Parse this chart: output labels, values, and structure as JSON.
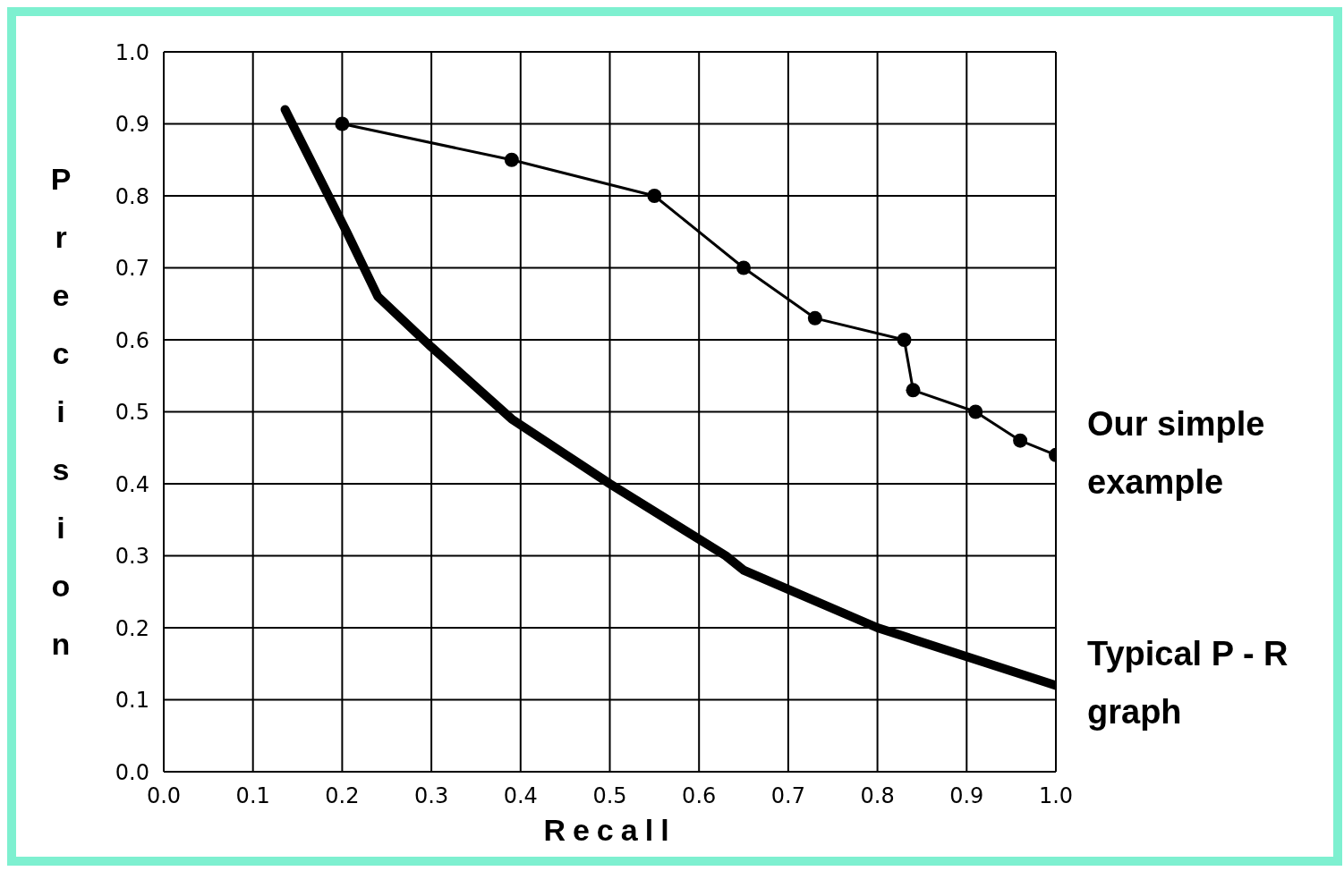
{
  "chart_data": {
    "type": "line",
    "xlabel": "Recall",
    "ylabel": "Precision",
    "xlim": [
      0,
      1
    ],
    "ylim": [
      0,
      1
    ],
    "xticks": [
      {
        "value": 0,
        "label": "0.0"
      },
      0.1,
      0.2,
      0.3,
      0.4,
      0.5,
      0.6,
      0.7,
      0.8,
      0.9,
      {
        "value": 1,
        "label": "1.0"
      }
    ],
    "yticks": [
      {
        "value": 0,
        "label": "0.0"
      },
      0.1,
      0.2,
      0.3,
      0.4,
      0.5,
      0.6,
      0.7,
      0.8,
      0.9,
      {
        "value": 1,
        "label": "1.0"
      }
    ],
    "grid": true,
    "series": [
      {
        "name": "Our simple example",
        "color": "#000000",
        "marker": "circle",
        "x": [
          0.2,
          0.39,
          0.55,
          0.65,
          0.73,
          0.83,
          0.84,
          0.91,
          0.96,
          1.0
        ],
        "values": [
          0.9,
          0.85,
          0.8,
          0.7,
          0.63,
          0.6,
          0.53,
          0.5,
          0.46,
          0.44
        ]
      },
      {
        "name": "Typical P - R graph",
        "color": "#000000",
        "marker": "none",
        "x": [
          0.136,
          0.205,
          0.24,
          0.3,
          0.39,
          0.5,
          0.63,
          0.65,
          0.8,
          1.0
        ],
        "values": [
          0.92,
          0.75,
          0.66,
          0.59,
          0.49,
          0.4,
          0.3,
          0.28,
          0.2,
          0.12
        ]
      }
    ]
  }
}
